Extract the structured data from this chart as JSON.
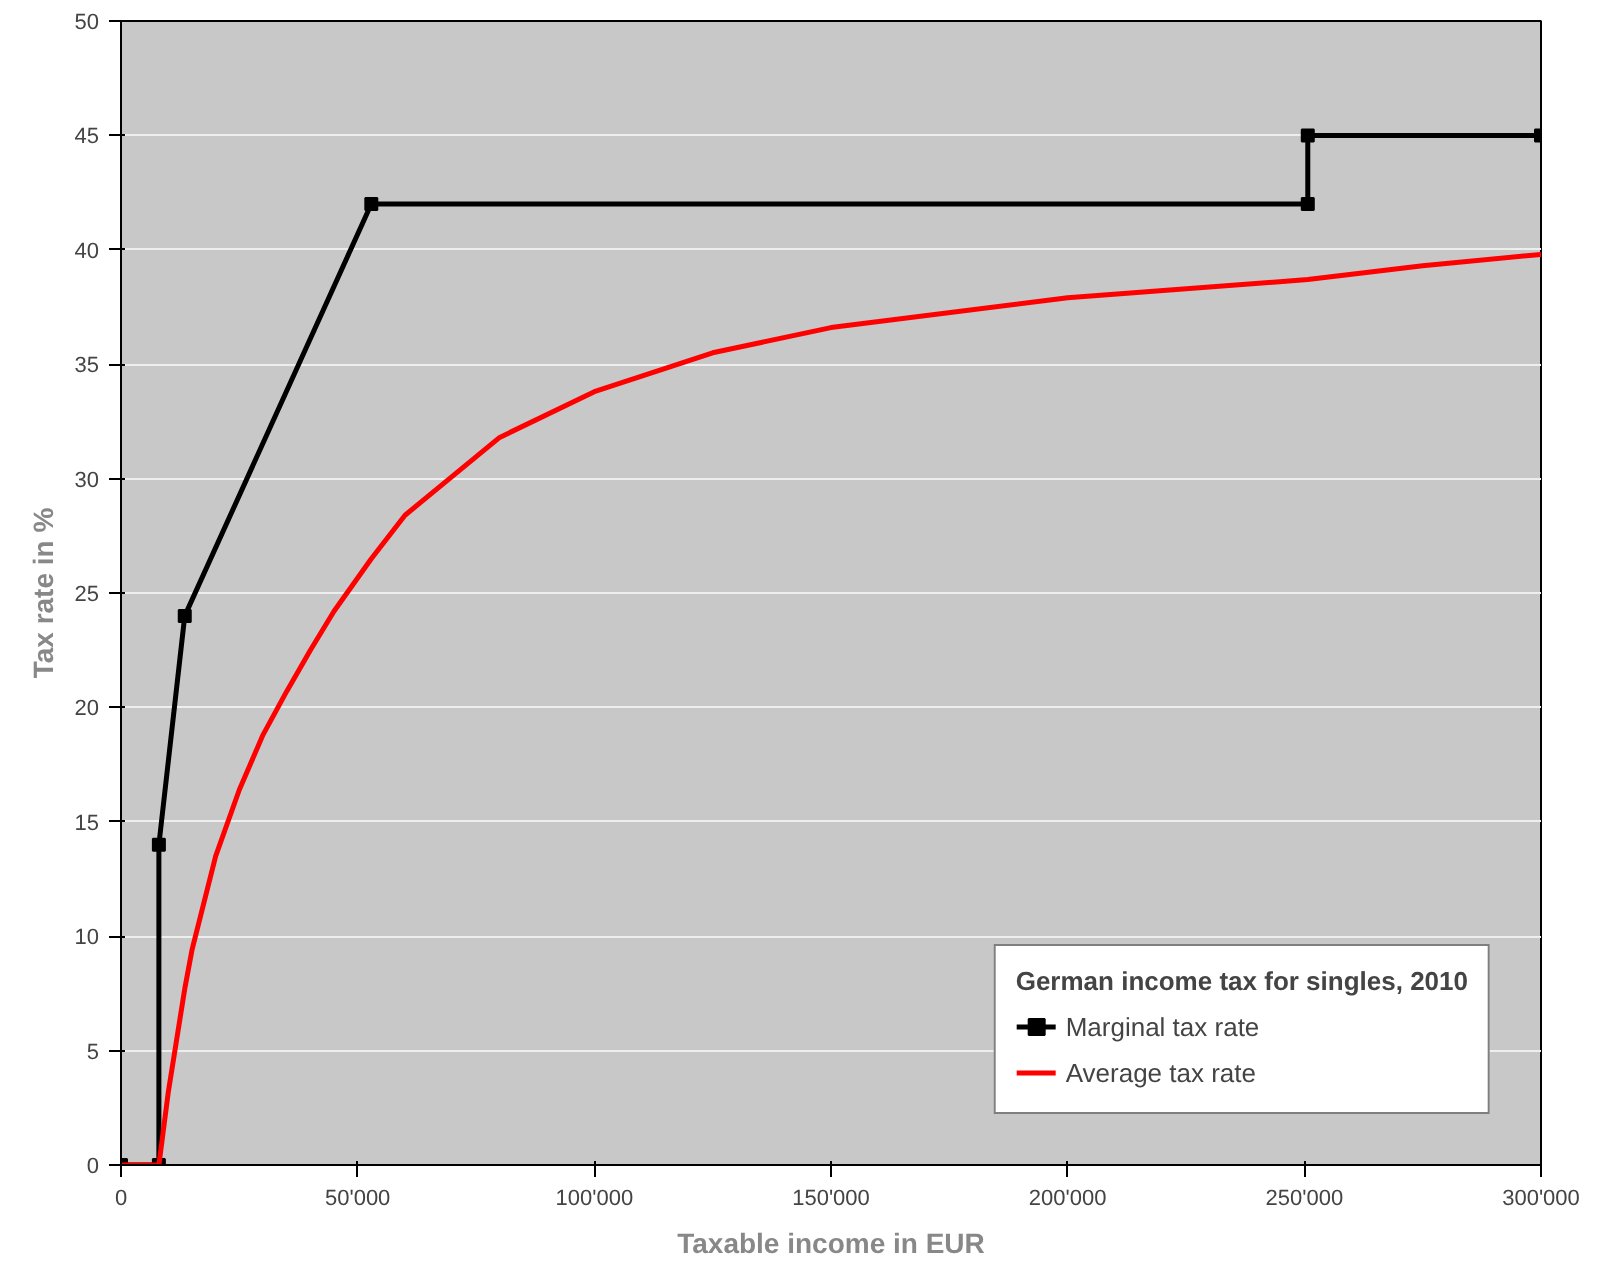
{
  "chart_data": {
    "type": "line",
    "legend_title": "German income tax for singles, 2010",
    "xlabel": "Taxable income in EUR",
    "ylabel": "Tax rate in %",
    "xlim": [
      0,
      300000
    ],
    "ylim": [
      0,
      50
    ],
    "xticks": [
      0,
      {
        "value": 50000,
        "label": "50'000"
      },
      {
        "value": 100000,
        "label": "100'000"
      },
      {
        "value": 150000,
        "label": "150'000"
      },
      {
        "value": 200000,
        "label": "200'000"
      },
      {
        "value": 250000,
        "label": "250'000"
      },
      {
        "value": 300000,
        "label": "300'000"
      }
    ],
    "yticks": [
      0,
      5,
      10,
      15,
      20,
      25,
      30,
      35,
      40,
      45,
      50
    ],
    "grid": "y",
    "legend": "bottom right",
    "series": [
      {
        "name": "Marginal tax rate",
        "color": "#000000",
        "marker": "square",
        "x": [
          0,
          8004,
          8004,
          13469,
          52881,
          250730,
          250730,
          300000
        ],
        "values": [
          0,
          0,
          14,
          24,
          42,
          42,
          45,
          45
        ]
      },
      {
        "name": "Average tax rate",
        "color": "#ff0000",
        "marker": "none",
        "x": [
          0,
          8004,
          10000,
          13469,
          15000,
          20000,
          25000,
          30000,
          35000,
          40000,
          45000,
          52881,
          60000,
          80000,
          100000,
          125000,
          150000,
          200000,
          250730,
          275000,
          300000
        ],
        "values": [
          0,
          0,
          3.2,
          7.7,
          9.4,
          13.5,
          16.4,
          18.8,
          20.7,
          22.5,
          24.2,
          26.5,
          28.4,
          31.8,
          33.8,
          35.5,
          36.6,
          37.9,
          38.7,
          39.3,
          39.8
        ]
      }
    ]
  }
}
